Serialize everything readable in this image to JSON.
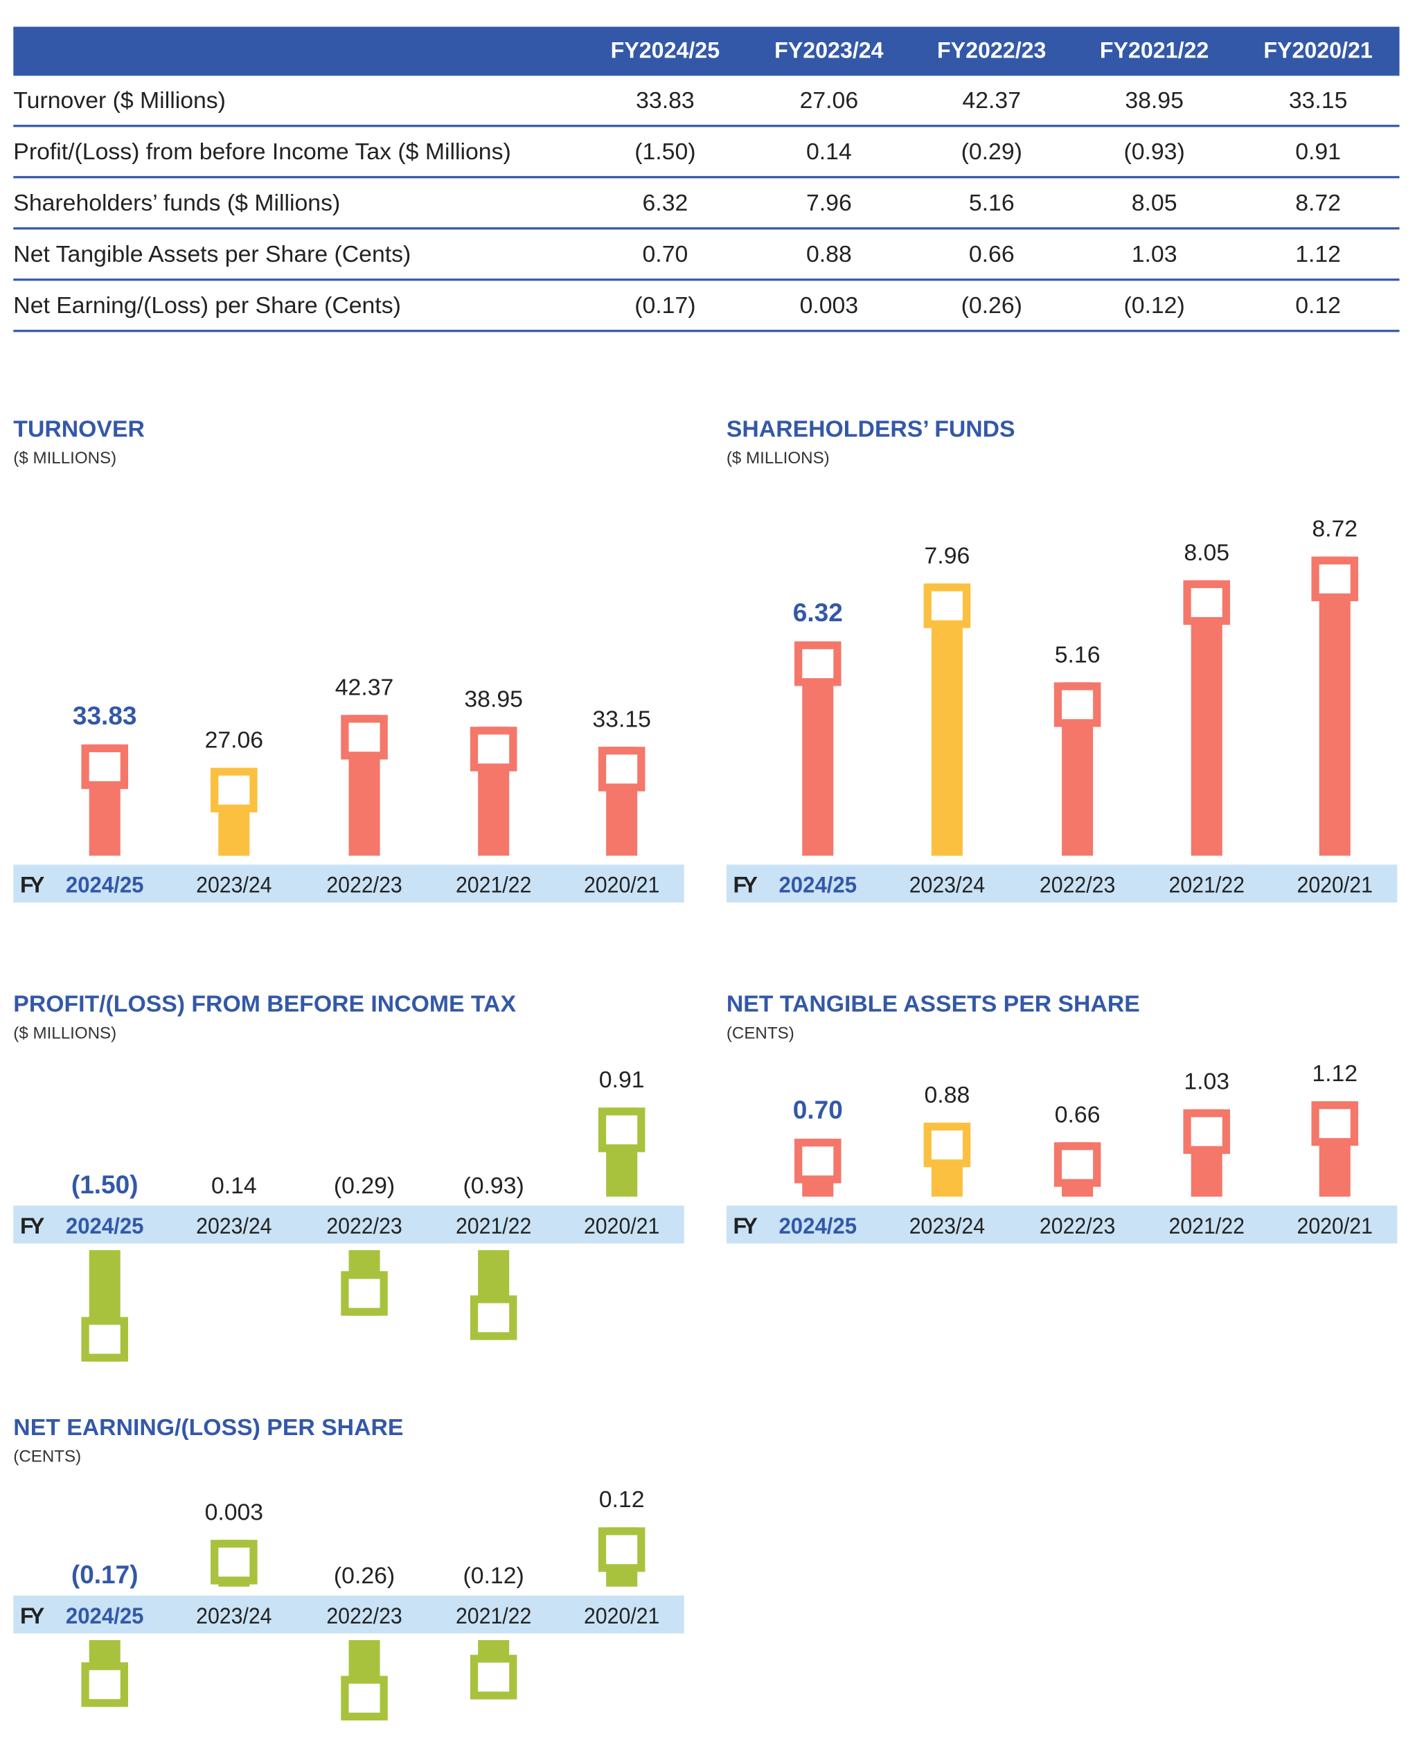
{
  "table": {
    "columns": [
      "FY2024/25",
      "FY2023/24",
      "FY2022/23",
      "FY2021/22",
      "FY2020/21"
    ],
    "rows": [
      {
        "label": "Turnover ($ Millions)",
        "values": [
          "33.83",
          "27.06",
          "42.37",
          "38.95",
          "33.15"
        ]
      },
      {
        "label": "Profit/(Loss) from before Income Tax ($ Millions)",
        "values": [
          "(1.50)",
          "0.14",
          "(0.29)",
          "(0.93)",
          "0.91"
        ]
      },
      {
        "label": "Shareholders’ funds ($ Millions)",
        "values": [
          "6.32",
          "7.96",
          "5.16",
          "8.05",
          "8.72"
        ]
      },
      {
        "label": "Net Tangible Assets per Share (Cents)",
        "values": [
          "0.70",
          "0.88",
          "0.66",
          "1.03",
          "1.12"
        ]
      },
      {
        "label": "Net Earning/(Loss) per Share (Cents)",
        "values": [
          "(0.17)",
          "0.003",
          "(0.26)",
          "(0.12)",
          "0.12"
        ]
      }
    ]
  },
  "colors": {
    "header": "#3358A8",
    "highlight": "#3358A8",
    "positive_current": "#F4776A",
    "previous_year": "#FCC040",
    "profit_loss": "#A8C23E",
    "band": "#C9E2F5"
  },
  "chart_data": [
    {
      "id": "turnover",
      "type": "bar",
      "title": "TURNOVER",
      "subtitle": "($ MILLIONS)",
      "axis_prefix": "FY",
      "categories": [
        "2024/25",
        "2023/24",
        "2022/23",
        "2021/22",
        "2020/21"
      ],
      "values": [
        33.83,
        27.06,
        42.37,
        38.95,
        33.15
      ],
      "labels": [
        "33.83",
        "27.06",
        "42.37",
        "38.95",
        "33.15"
      ],
      "bar_colors": [
        "#F4776A",
        "#FCC040",
        "#F4776A",
        "#F4776A",
        "#F4776A"
      ]
    },
    {
      "id": "shareholders",
      "type": "bar",
      "title": "SHAREHOLDERS’ FUNDS",
      "subtitle": "($ MILLIONS)",
      "axis_prefix": "FY",
      "categories": [
        "2024/25",
        "2023/24",
        "2022/23",
        "2021/22",
        "2020/21"
      ],
      "values": [
        6.32,
        7.96,
        5.16,
        8.05,
        8.72
      ],
      "labels": [
        "6.32",
        "7.96",
        "5.16",
        "8.05",
        "8.72"
      ],
      "bar_colors": [
        "#F4776A",
        "#FCC040",
        "#F4776A",
        "#F4776A",
        "#F4776A"
      ]
    },
    {
      "id": "profit",
      "type": "bar",
      "title": "PROFIT/(LOSS) FROM BEFORE INCOME TAX",
      "subtitle": "($ MILLIONS)",
      "axis_prefix": "FY",
      "categories": [
        "2024/25",
        "2023/24",
        "2022/23",
        "2021/22",
        "2020/21"
      ],
      "values": [
        -1.5,
        0.14,
        -0.29,
        -0.93,
        0.91
      ],
      "labels": [
        "(1.50)",
        "0.14",
        "(0.29)",
        "(0.93)",
        "0.91"
      ],
      "bars_drawn": [
        true,
        false,
        true,
        true,
        true
      ],
      "bar_colors": [
        "#A8C23E",
        "#A8C23E",
        "#A8C23E",
        "#A8C23E",
        "#A8C23E"
      ]
    },
    {
      "id": "nta",
      "type": "bar",
      "title": "NET TANGIBLE ASSETS PER SHARE",
      "subtitle": "(CENTS)",
      "axis_prefix": "FY",
      "categories": [
        "2024/25",
        "2023/24",
        "2022/23",
        "2021/22",
        "2020/21"
      ],
      "values": [
        0.7,
        0.88,
        0.66,
        1.03,
        1.12
      ],
      "labels": [
        "0.70",
        "0.88",
        "0.66",
        "1.03",
        "1.12"
      ],
      "bar_colors": [
        "#F4776A",
        "#FCC040",
        "#F4776A",
        "#F4776A",
        "#F4776A"
      ]
    },
    {
      "id": "eps",
      "type": "bar",
      "title": "NET EARNING/(LOSS) PER SHARE",
      "subtitle": "(CENTS)",
      "axis_prefix": "FY",
      "categories": [
        "2024/25",
        "2023/24",
        "2022/23",
        "2021/22",
        "2020/21"
      ],
      "values": [
        -0.17,
        0.003,
        -0.26,
        -0.12,
        0.12
      ],
      "labels": [
        "(0.17)",
        "0.003",
        "(0.26)",
        "(0.12)",
        "0.12"
      ],
      "bar_colors": [
        "#A8C23E",
        "#A8C23E",
        "#A8C23E",
        "#A8C23E",
        "#A8C23E"
      ]
    }
  ]
}
